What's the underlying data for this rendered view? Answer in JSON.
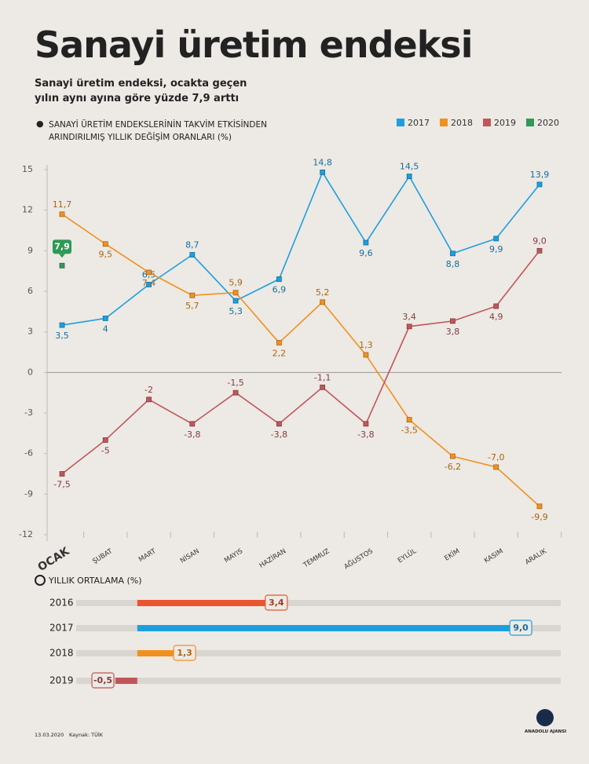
{
  "title": "Sanayi üretim endeksi",
  "subtitle": "Sanayi üretim endeksi, ocakta geçen yılın aynı ayına göre yüzde 7,9 arttı",
  "footer": {
    "date": "13.03.2020",
    "source": "Kaynak: TÜİK",
    "logo": "ANADOLU AJANSI"
  },
  "chart_data": [
    {
      "type": "line",
      "title": "SANAYİ ÜRETİM ENDEKSLERİNİN TAKVİM ETKİSİNDEN ARINDIRILMIŞ YILLIK DEĞİŞİM ORANLARI (%)",
      "categories": [
        "OCAK",
        "ŞUBAT",
        "MART",
        "NİSAN",
        "MAYIS",
        "HAZİRAN",
        "TEMMUZ",
        "AĞUSTOS",
        "EYLÜL",
        "EKİM",
        "KASIM",
        "ARALIK"
      ],
      "ylim": [
        -12,
        15
      ],
      "yticks": [
        15,
        12,
        9,
        6,
        3,
        0,
        -3,
        -6,
        -9,
        -12
      ],
      "legend": "top-right",
      "series": [
        {
          "name": "2017",
          "color": "#1c9fdf",
          "values": [
            3.5,
            4,
            6.5,
            8.7,
            5.3,
            6.9,
            14.8,
            9.6,
            14.5,
            8.8,
            9.9,
            13.9
          ],
          "value_labels": [
            "3,5",
            "4",
            "6,5",
            "8,7",
            "5,3",
            "6,9",
            "14,8",
            "9,6",
            "14,5",
            "8,8",
            "9,9",
            "13,9"
          ]
        },
        {
          "name": "2018",
          "color": "#f0911f",
          "values": [
            11.7,
            9.5,
            7.4,
            5.7,
            5.9,
            2.2,
            5.2,
            1.3,
            -3.5,
            -6.2,
            -7.0,
            -9.9
          ],
          "value_labels": [
            "11,7",
            "9,5",
            "7,4",
            "5,7",
            "5,9",
            "2,2",
            "5,2",
            "1,3",
            "-3,5",
            "-6,2",
            "-7,0",
            "-9,9"
          ]
        },
        {
          "name": "2019",
          "color": "#c0565b",
          "values": [
            -7.5,
            -5,
            -2,
            -3.8,
            -1.5,
            -3.8,
            -1.1,
            -3.8,
            3.4,
            3.8,
            4.9,
            9.0
          ],
          "value_labels": [
            "-7,5",
            "-5",
            "-2",
            "-3,8",
            "-1,5",
            "-3,8",
            "-1,1",
            "-3,8",
            "3,4",
            "3,8",
            "4,9",
            "9,0"
          ]
        },
        {
          "name": "2020",
          "color": "#2f9a56",
          "values": [
            7.9,
            null,
            null,
            null,
            null,
            null,
            null,
            null,
            null,
            null,
            null,
            null
          ],
          "value_labels": [
            "7,9",
            null,
            null,
            null,
            null,
            null,
            null,
            null,
            null,
            null,
            null,
            null
          ]
        }
      ]
    },
    {
      "type": "hbar",
      "title": "YILLIK ORTALAMA (%)",
      "categories": [
        "2016",
        "2017",
        "2018",
        "2019"
      ],
      "values": [
        3.4,
        9.0,
        1.3,
        -0.5
      ],
      "value_labels": [
        "3,4",
        "9,0",
        "1,3",
        "-0,5"
      ],
      "colors": [
        "#e9552f",
        "#1c9fdf",
        "#f0911f",
        "#c0565b"
      ],
      "xlim": [
        -1.4,
        9.7
      ]
    }
  ]
}
